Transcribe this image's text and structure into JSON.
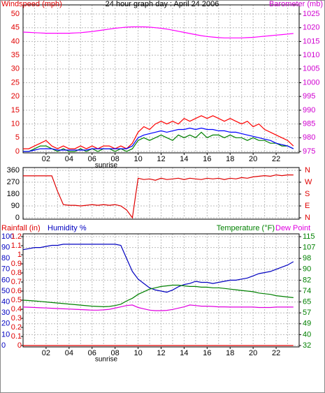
{
  "chart_data": [
    {
      "type": "line",
      "title": "24 hour graph day : April 24 2006",
      "ylabel": "Windspeed (mph)",
      "y2label": "Barometer (mb)",
      "annotation": "sunrise",
      "y_color": "#e00000",
      "y2_color": "#d000d0",
      "grid": true,
      "xlim": [
        0,
        24
      ],
      "xticks": [
        {
          "value": 2,
          "label": "02"
        },
        {
          "value": 4,
          "label": "04"
        },
        {
          "value": 6,
          "label": "06"
        },
        {
          "value": 8,
          "label": "08"
        },
        10,
        12,
        14,
        16,
        18,
        20,
        22
      ],
      "xgrid": [
        1,
        2,
        3,
        4,
        5,
        6,
        7,
        8,
        9,
        10,
        11,
        12,
        13,
        14,
        15,
        16,
        17,
        18,
        19,
        20,
        21,
        22,
        23
      ],
      "ylim": [
        0,
        50
      ],
      "yticks": [
        0,
        5,
        10,
        15,
        20,
        25,
        30,
        35,
        40,
        45,
        50
      ],
      "y2lim": [
        975,
        1025
      ],
      "y2ticks": [
        975,
        980,
        985,
        990,
        995,
        1000,
        1005,
        1010,
        1015,
        1020,
        1025
      ],
      "x": [
        0,
        0.5,
        1,
        1.5,
        2,
        2.5,
        3,
        3.5,
        4,
        4.5,
        5,
        5.5,
        6,
        6.5,
        7,
        7.5,
        8,
        8.5,
        9,
        9.5,
        10,
        10.5,
        11,
        11.5,
        12,
        12.5,
        13,
        13.5,
        14,
        14.5,
        15,
        15.5,
        16,
        16.5,
        17,
        17.5,
        18,
        18.5,
        19,
        19.5,
        20,
        20.5,
        21,
        21.5,
        22,
        22.5,
        23,
        23.5
      ],
      "series": [
        {
          "color": "#ff0000",
          "values": [
            1,
            1,
            2,
            3,
            4,
            2,
            1,
            2,
            1,
            1,
            2,
            1,
            2,
            1,
            2,
            2,
            1,
            2,
            1,
            3,
            7,
            9,
            8,
            10,
            11,
            10,
            11,
            10,
            12,
            11,
            12,
            13,
            12,
            13,
            12,
            11,
            12,
            11,
            10,
            11,
            9,
            10,
            8,
            7,
            6,
            5,
            4,
            2
          ]
        },
        {
          "color": "#008000",
          "values": [
            0,
            0,
            1,
            2,
            2,
            1,
            0,
            1,
            0,
            0,
            1,
            0,
            1,
            0,
            1,
            1,
            0,
            1,
            0,
            1,
            4,
            5,
            4,
            5,
            6,
            5,
            4,
            6,
            5,
            6,
            5,
            7,
            5,
            6,
            6,
            5,
            6,
            5,
            5,
            4,
            5,
            4,
            4,
            3,
            3,
            2,
            2,
            1
          ]
        },
        {
          "color": "#0000ff",
          "values": [
            0,
            0,
            0.5,
            1,
            1,
            1,
            0.5,
            0.5,
            0.5,
            0.5,
            0.5,
            0.5,
            1,
            1,
            1,
            1,
            1,
            1,
            1,
            2,
            5,
            6,
            6.5,
            7,
            7.5,
            7,
            7.5,
            8,
            8,
            8.5,
            8,
            8.5,
            8,
            8,
            7.5,
            7.5,
            7,
            7,
            6.5,
            6,
            5.5,
            5,
            4.5,
            4,
            3,
            2.5,
            2,
            1
          ]
        },
        {
          "color": "#ff00ff",
          "axis": "y2",
          "values": [
            1018.4,
            1018.3,
            1018.2,
            1018.1,
            1018,
            1018,
            1018,
            1018,
            1018,
            1018.1,
            1018.2,
            1018.4,
            1018.6,
            1018.9,
            1019.2,
            1019.5,
            1019.8,
            1020,
            1020.2,
            1020.3,
            1020.3,
            1020.3,
            1020.2,
            1020,
            1019.8,
            1019.5,
            1019.1,
            1018.7,
            1018.3,
            1017.9,
            1017.5,
            1017.1,
            1016.8,
            1016.6,
            1016.4,
            1016.3,
            1016.3,
            1016.3,
            1016.3,
            1016.4,
            1016.5,
            1016.7,
            1016.9,
            1017.1,
            1017.3,
            1017.5,
            1017.7,
            1017.9
          ]
        }
      ]
    },
    {
      "type": "line",
      "y_color": "#000000",
      "y2_color": "#e00000",
      "grid": true,
      "xlim": [
        0,
        24
      ],
      "xgrid": [
        1,
        2,
        3,
        4,
        5,
        6,
        7,
        8,
        9,
        10,
        11,
        12,
        13,
        14,
        15,
        16,
        17,
        18,
        19,
        20,
        21,
        22,
        23
      ],
      "ylim": [
        0,
        360
      ],
      "yticks": [
        0,
        90,
        180,
        270,
        360
      ],
      "y2lim": [
        0,
        360
      ],
      "y2ticks": [
        {
          "value": 0,
          "label": "N"
        },
        {
          "value": 90,
          "label": "E"
        },
        {
          "value": 180,
          "label": "S"
        },
        {
          "value": 270,
          "label": "W"
        },
        {
          "value": 360,
          "label": "N"
        }
      ],
      "x": [
        0,
        0.5,
        1,
        1.5,
        2,
        2.5,
        3,
        3.5,
        4,
        4.5,
        5,
        5.5,
        6,
        6.5,
        7,
        7.5,
        8,
        8.5,
        9,
        9.5,
        10,
        10.5,
        11,
        11.5,
        12,
        12.5,
        13,
        13.5,
        14,
        14.5,
        15,
        15.5,
        16,
        16.5,
        17,
        17.5,
        18,
        18.5,
        19,
        19.5,
        20,
        20.5,
        21,
        21.5,
        22,
        22.5,
        23,
        23.5
      ],
      "series": [
        {
          "color": "#e00000",
          "values": [
            318,
            318,
            318,
            318,
            318,
            318,
            200,
            100,
            95,
            95,
            90,
            95,
            100,
            95,
            100,
            95,
            100,
            90,
            60,
            0,
            300,
            290,
            295,
            285,
            300,
            290,
            295,
            300,
            290,
            300,
            295,
            290,
            300,
            295,
            300,
            290,
            300,
            295,
            305,
            300,
            310,
            315,
            320,
            315,
            325,
            320,
            325,
            325
          ]
        }
      ]
    },
    {
      "type": "line",
      "annotation": "sunrise",
      "y_color": "#0000c0",
      "y2_color": "#008000",
      "y3_color": "#e00000",
      "grid": true,
      "xlim": [
        0,
        24
      ],
      "xticks": [
        {
          "value": 2,
          "label": "02"
        },
        {
          "value": 4,
          "label": "04"
        },
        {
          "value": 6,
          "label": "06"
        },
        {
          "value": 8,
          "label": "08"
        },
        10,
        12,
        14,
        16,
        18,
        20,
        22
      ],
      "xgrid": [
        1,
        2,
        3,
        4,
        5,
        6,
        7,
        8,
        9,
        10,
        11,
        12,
        13,
        14,
        15,
        16,
        17,
        18,
        19,
        20,
        21,
        22,
        23
      ],
      "ylim": [
        0,
        100
      ],
      "yticks": [
        0,
        10,
        20,
        30,
        40,
        50,
        60,
        70,
        80,
        90,
        100
      ],
      "y3lim": [
        0,
        1.2
      ],
      "y3ticks": [
        0,
        0.1,
        0.2,
        0.3,
        0.4,
        0.5,
        0.6,
        0.7,
        0.8,
        0.9,
        1,
        1.1,
        1.2
      ],
      "y2lim": [
        32,
        115
      ],
      "y2ticks": [
        32,
        {
          "value": 40.3,
          "label": "40"
        },
        {
          "value": 48.6,
          "label": "49"
        },
        {
          "value": 56.9,
          "label": "57"
        },
        {
          "value": 65.2,
          "label": "65"
        },
        {
          "value": 73.5,
          "label": "74"
        },
        {
          "value": 81.8,
          "label": "82"
        },
        {
          "value": 90.1,
          "label": "90"
        },
        {
          "value": 98.4,
          "label": "98"
        },
        {
          "value": 106.7,
          "label": "107"
        },
        115
      ],
      "x": [
        0,
        0.5,
        1,
        1.5,
        2,
        2.5,
        3,
        3.5,
        4,
        4.5,
        5,
        5.5,
        6,
        6.5,
        7,
        7.5,
        8,
        8.5,
        9,
        9.5,
        10,
        10.5,
        11,
        11.5,
        12,
        12.5,
        13,
        13.5,
        14,
        14.5,
        15,
        15.5,
        16,
        16.5,
        17,
        17.5,
        18,
        18.5,
        19,
        19.5,
        20,
        20.5,
        21,
        21.5,
        22,
        22.5,
        23,
        23.5
      ],
      "series": [
        {
          "name": "Rainfall (in)",
          "color": "#e00000",
          "axis": "y3",
          "values": [
            0,
            0,
            0,
            0,
            0,
            0,
            0,
            0,
            0,
            0,
            0,
            0,
            0,
            0,
            0,
            0,
            0,
            0,
            0,
            0,
            0,
            0,
            0,
            0,
            0,
            0,
            0,
            0,
            0,
            0,
            0,
            0,
            0,
            0,
            0,
            0,
            0,
            0,
            0,
            0,
            0,
            0,
            0,
            0,
            0,
            0,
            0,
            0
          ]
        },
        {
          "name": "Humidity %",
          "color": "#0000c0",
          "values": [
            88,
            89,
            90,
            90,
            91,
            92,
            92,
            93,
            93,
            93,
            93,
            93,
            93,
            93,
            93,
            93,
            93,
            92,
            80,
            68,
            61,
            57,
            53,
            51,
            50,
            49,
            51,
            54,
            56,
            57,
            59,
            58,
            58,
            57,
            58,
            59,
            60,
            60,
            61,
            62,
            64,
            66,
            67,
            68,
            70,
            72,
            74,
            77
          ]
        },
        {
          "name": "Temperature (°F)",
          "color": "#008000",
          "axis": "y2",
          "values": [
            66.6,
            66.3,
            66,
            65.6,
            65.2,
            64.8,
            64.4,
            64,
            63.6,
            63.2,
            62.8,
            62.4,
            62,
            61.8,
            61.6,
            61.8,
            62.5,
            63.5,
            66,
            68,
            71,
            73,
            75,
            76,
            77,
            77.5,
            78,
            78,
            77.5,
            77,
            77,
            76.5,
            76.5,
            76,
            76,
            75.5,
            75,
            74.5,
            74,
            73.5,
            73,
            72,
            71.5,
            71,
            70,
            69.5,
            69,
            68.5
          ]
        },
        {
          "name": "Dew Point",
          "color": "#e000e0",
          "axis": "y2",
          "values": [
            61.3,
            61.2,
            61,
            60.8,
            60.6,
            60.4,
            60.2,
            60,
            59.8,
            59.6,
            59.4,
            59.2,
            59,
            59,
            59.2,
            59.6,
            60.5,
            61.5,
            62.5,
            62.9,
            61,
            60,
            59,
            58.6,
            58.6,
            58.8,
            59.5,
            60.5,
            61.5,
            62.9,
            62.5,
            62,
            62,
            61.8,
            61.5,
            61.5,
            61.3,
            61.3,
            61.3,
            61.3,
            61.3,
            61,
            61,
            61,
            61.3,
            61.3,
            61.3,
            61.3
          ]
        }
      ]
    }
  ]
}
